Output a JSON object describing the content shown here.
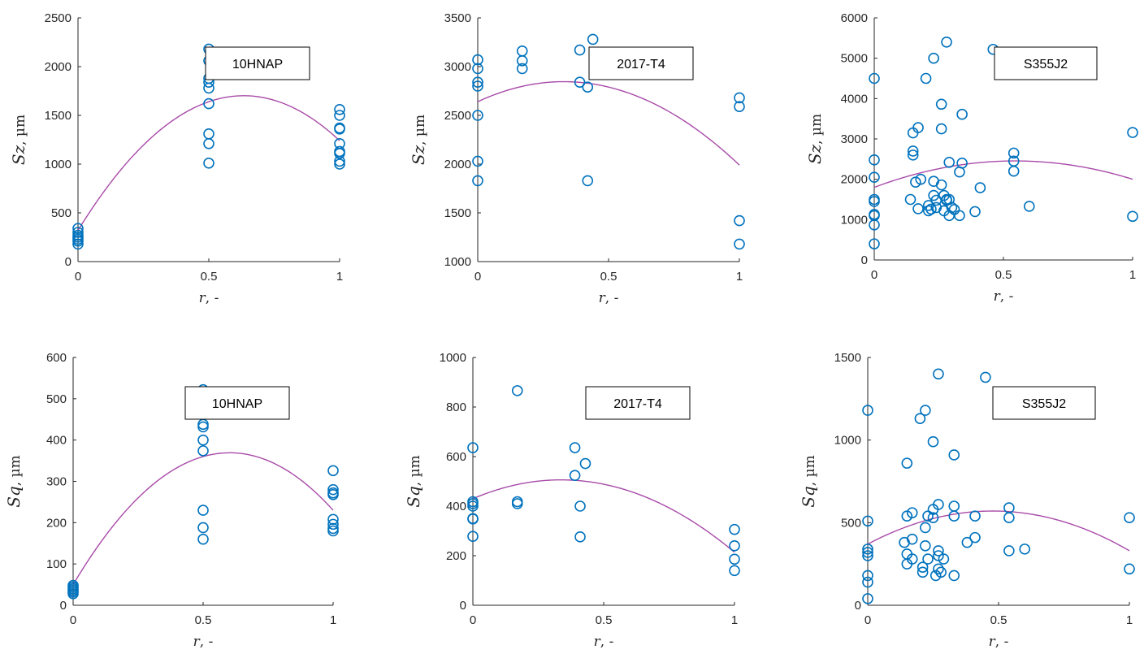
{
  "chart_data": [
    {
      "type": "scatter",
      "xlabel_symbol": "r",
      "xlabel_rest": ", -",
      "ylabel_symbol": "Sz",
      "ylabel_rest": ", µm",
      "legend": "10HNAP",
      "xlim": [
        0,
        1
      ],
      "ylim": [
        0,
        2500
      ],
      "xticks": [
        0,
        0.5,
        1
      ],
      "xticklabels": [
        "0",
        "0.5",
        "1"
      ],
      "yticks": [
        0,
        500,
        1000,
        1500,
        2000,
        2500
      ],
      "yticklabels": [
        "0",
        "500",
        "1000",
        "1500",
        "2000",
        "2500"
      ],
      "points": [
        [
          0,
          340
        ],
        [
          0,
          300
        ],
        [
          0,
          270
        ],
        [
          0,
          250
        ],
        [
          0,
          230
        ],
        [
          0,
          210
        ],
        [
          0,
          180
        ],
        [
          0.5,
          2180
        ],
        [
          0.5,
          2060
        ],
        [
          0.5,
          1880
        ],
        [
          0.5,
          1840
        ],
        [
          0.5,
          1780
        ],
        [
          0.5,
          1620
        ],
        [
          0.5,
          1310
        ],
        [
          0.5,
          1210
        ],
        [
          0.5,
          1010
        ],
        [
          1,
          1560
        ],
        [
          1,
          1500
        ],
        [
          1,
          1370
        ],
        [
          1,
          1360
        ],
        [
          1,
          1210
        ],
        [
          1,
          1130
        ],
        [
          1,
          1110
        ],
        [
          1,
          1030
        ],
        [
          1,
          1000
        ]
      ],
      "fit": {
        "type": "quadratic",
        "a": -3440,
        "b": 4360,
        "c": 320,
        "xrange": [
          0,
          1
        ]
      },
      "grid": false,
      "legend_position": "top-right"
    },
    {
      "type": "scatter",
      "xlabel_symbol": "r",
      "xlabel_rest": ", -",
      "ylabel_symbol": "Sz",
      "ylabel_rest": ", µm",
      "legend": "2017-T4",
      "xlim": [
        0,
        1
      ],
      "ylim": [
        1000,
        3500
      ],
      "xticks": [
        0,
        0.5,
        1
      ],
      "xticklabels": [
        "0",
        "0.5",
        "1"
      ],
      "yticks": [
        1000,
        1500,
        2000,
        2500,
        3000,
        3500
      ],
      "yticklabels": [
        "1000",
        "1500",
        "2000",
        "2500",
        "3000",
        "3500"
      ],
      "points": [
        [
          0,
          3070
        ],
        [
          0,
          2980
        ],
        [
          0,
          2840
        ],
        [
          0,
          2800
        ],
        [
          0,
          2500
        ],
        [
          0,
          2030
        ],
        [
          0,
          1830
        ],
        [
          0.17,
          3160
        ],
        [
          0.17,
          3060
        ],
        [
          0.17,
          2980
        ],
        [
          0.39,
          3170
        ],
        [
          0.39,
          2840
        ],
        [
          0.42,
          2790
        ],
        [
          0.42,
          1830
        ],
        [
          0.44,
          3280
        ],
        [
          1,
          2680
        ],
        [
          1,
          2590
        ],
        [
          1,
          1420
        ],
        [
          1,
          1180
        ]
      ],
      "fit": {
        "type": "quadratic",
        "a": -1900,
        "b": 1250,
        "c": 2640,
        "xrange": [
          0,
          1
        ]
      },
      "grid": false,
      "legend_position": "top-right"
    },
    {
      "type": "scatter",
      "xlabel_symbol": "r",
      "xlabel_rest": ", -",
      "ylabel_symbol": "Sz",
      "ylabel_rest": ", µm",
      "legend": "S355J2",
      "xlim": [
        0,
        1
      ],
      "ylim": [
        0,
        6000
      ],
      "xticks": [
        0,
        0.5,
        1
      ],
      "xticklabels": [
        "0",
        "0.5",
        "1"
      ],
      "yticks": [
        0,
        1000,
        2000,
        3000,
        4000,
        5000,
        6000
      ],
      "yticklabels": [
        "0",
        "1000",
        "2000",
        "3000",
        "4000",
        "5000",
        "6000"
      ],
      "points": [
        [
          0,
          4500
        ],
        [
          0,
          2480
        ],
        [
          0,
          2050
        ],
        [
          0,
          1500
        ],
        [
          0,
          1450
        ],
        [
          0,
          1130
        ],
        [
          0,
          1100
        ],
        [
          0,
          870
        ],
        [
          0,
          400
        ],
        [
          0.14,
          1500
        ],
        [
          0.15,
          3150
        ],
        [
          0.15,
          2700
        ],
        [
          0.15,
          2600
        ],
        [
          0.16,
          1930
        ],
        [
          0.17,
          3280
        ],
        [
          0.17,
          1270
        ],
        [
          0.18,
          2000
        ],
        [
          0.2,
          4500
        ],
        [
          0.21,
          1350
        ],
        [
          0.21,
          1220
        ],
        [
          0.22,
          1260
        ],
        [
          0.23,
          5000
        ],
        [
          0.23,
          1950
        ],
        [
          0.23,
          1600
        ],
        [
          0.24,
          1480
        ],
        [
          0.24,
          1300
        ],
        [
          0.26,
          3860
        ],
        [
          0.26,
          3250
        ],
        [
          0.26,
          1860
        ],
        [
          0.27,
          1600
        ],
        [
          0.27,
          1220
        ],
        [
          0.28,
          5400
        ],
        [
          0.28,
          1500
        ],
        [
          0.28,
          1480
        ],
        [
          0.29,
          2420
        ],
        [
          0.29,
          1500
        ],
        [
          0.29,
          1100
        ],
        [
          0.3,
          1300
        ],
        [
          0.31,
          1250
        ],
        [
          0.33,
          2180
        ],
        [
          0.33,
          1100
        ],
        [
          0.34,
          3610
        ],
        [
          0.34,
          2400
        ],
        [
          0.39,
          1200
        ],
        [
          0.41,
          1790
        ],
        [
          0.46,
          5220
        ],
        [
          0.54,
          2650
        ],
        [
          0.54,
          2450
        ],
        [
          0.54,
          2200
        ],
        [
          0.6,
          1330
        ],
        [
          1,
          3160
        ],
        [
          1,
          1080
        ]
      ],
      "fit": {
        "type": "quadratic",
        "a": -2200,
        "b": 2400,
        "c": 1800,
        "xrange": [
          0,
          1
        ]
      },
      "grid": false,
      "legend_position": "top-right"
    },
    {
      "type": "scatter",
      "xlabel_symbol": "r",
      "xlabel_rest": ", -",
      "ylabel_symbol": "Sq",
      "ylabel_rest": ", µm",
      "legend": "10HNAP",
      "xlim": [
        0,
        1
      ],
      "ylim": [
        0,
        600
      ],
      "xticks": [
        0,
        0.5,
        1
      ],
      "xticklabels": [
        "0",
        "0.5",
        "1"
      ],
      "yticks": [
        0,
        100,
        200,
        300,
        400,
        500,
        600
      ],
      "yticklabels": [
        "0",
        "100",
        "200",
        "300",
        "400",
        "500",
        "600"
      ],
      "points": [
        [
          0,
          48
        ],
        [
          0,
          44
        ],
        [
          0,
          40
        ],
        [
          0,
          36
        ],
        [
          0,
          32
        ],
        [
          0,
          28
        ],
        [
          0.5,
          522
        ],
        [
          0.5,
          490
        ],
        [
          0.5,
          438
        ],
        [
          0.5,
          432
        ],
        [
          0.5,
          400
        ],
        [
          0.5,
          374
        ],
        [
          0.5,
          230
        ],
        [
          0.5,
          188
        ],
        [
          0.5,
          160
        ],
        [
          1,
          326
        ],
        [
          1,
          280
        ],
        [
          1,
          272
        ],
        [
          1,
          268
        ],
        [
          1,
          208
        ],
        [
          1,
          196
        ],
        [
          1,
          186
        ],
        [
          1,
          180
        ]
      ],
      "fit": {
        "type": "quadratic",
        "a": -880,
        "b": 1060,
        "c": 50,
        "xrange": [
          0,
          1
        ]
      },
      "grid": false,
      "legend_position": "top-right"
    },
    {
      "type": "scatter",
      "xlabel_symbol": "r",
      "xlabel_rest": ", -",
      "ylabel_symbol": "Sq",
      "ylabel_rest": ", µm",
      "legend": "2017-T4",
      "xlim": [
        0,
        1
      ],
      "ylim": [
        0,
        1000
      ],
      "xticks": [
        0,
        0.5,
        1
      ],
      "xticklabels": [
        "0",
        "0.5",
        "1"
      ],
      "yticks": [
        0,
        200,
        400,
        600,
        800,
        1000
      ],
      "yticklabels": [
        "0",
        "200",
        "400",
        "600",
        "800",
        "1000"
      ],
      "points": [
        [
          0,
          636
        ],
        [
          0,
          418
        ],
        [
          0,
          410
        ],
        [
          0,
          400
        ],
        [
          0,
          350
        ],
        [
          0,
          348
        ],
        [
          0,
          278
        ],
        [
          0.17,
          866
        ],
        [
          0.17,
          418
        ],
        [
          0.17,
          410
        ],
        [
          0.39,
          636
        ],
        [
          0.39,
          524
        ],
        [
          0.41,
          400
        ],
        [
          0.41,
          276
        ],
        [
          0.43,
          572
        ],
        [
          1,
          306
        ],
        [
          1,
          240
        ],
        [
          1,
          186
        ],
        [
          1,
          140
        ]
      ],
      "fit": {
        "type": "quadratic",
        "a": -666,
        "b": 450,
        "c": 430,
        "xrange": [
          0,
          1
        ]
      },
      "grid": false,
      "legend_position": "top-right"
    },
    {
      "type": "scatter",
      "xlabel_symbol": "r",
      "xlabel_rest": ", -",
      "ylabel_symbol": "Sq",
      "ylabel_rest": ", µm",
      "legend": "S355J2",
      "xlim": [
        0,
        1
      ],
      "ylim": [
        0,
        1500
      ],
      "xticks": [
        0,
        0.5,
        1
      ],
      "xticklabels": [
        "0",
        "0.5",
        "1"
      ],
      "yticks": [
        0,
        500,
        1000,
        1500
      ],
      "yticklabels": [
        "0",
        "500",
        "1000",
        "1500"
      ],
      "points": [
        [
          0,
          1180
        ],
        [
          0,
          510
        ],
        [
          0,
          340
        ],
        [
          0,
          320
        ],
        [
          0,
          300
        ],
        [
          0,
          180
        ],
        [
          0,
          140
        ],
        [
          0,
          40
        ],
        [
          0.14,
          380
        ],
        [
          0.15,
          860
        ],
        [
          0.15,
          540
        ],
        [
          0.15,
          310
        ],
        [
          0.15,
          250
        ],
        [
          0.17,
          560
        ],
        [
          0.17,
          400
        ],
        [
          0.17,
          280
        ],
        [
          0.2,
          1130
        ],
        [
          0.21,
          230
        ],
        [
          0.21,
          200
        ],
        [
          0.22,
          1180
        ],
        [
          0.22,
          470
        ],
        [
          0.22,
          360
        ],
        [
          0.23,
          540
        ],
        [
          0.23,
          280
        ],
        [
          0.25,
          990
        ],
        [
          0.25,
          580
        ],
        [
          0.25,
          530
        ],
        [
          0.26,
          180
        ],
        [
          0.27,
          1400
        ],
        [
          0.27,
          610
        ],
        [
          0.27,
          330
        ],
        [
          0.27,
          300
        ],
        [
          0.27,
          220
        ],
        [
          0.28,
          200
        ],
        [
          0.29,
          280
        ],
        [
          0.33,
          910
        ],
        [
          0.33,
          600
        ],
        [
          0.33,
          540
        ],
        [
          0.33,
          180
        ],
        [
          0.38,
          380
        ],
        [
          0.41,
          540
        ],
        [
          0.41,
          410
        ],
        [
          0.45,
          1380
        ],
        [
          0.54,
          590
        ],
        [
          0.54,
          530
        ],
        [
          0.54,
          330
        ],
        [
          0.6,
          340
        ],
        [
          1,
          530
        ],
        [
          1,
          220
        ]
      ],
      "fit": {
        "type": "quadratic",
        "a": -880,
        "b": 840,
        "c": 370,
        "xrange": [
          0,
          1
        ]
      },
      "grid": false,
      "legend_position": "top-right"
    }
  ],
  "colors": {
    "marker": "#0072bd",
    "fit": "#a84aa8",
    "axis": "#262626"
  }
}
